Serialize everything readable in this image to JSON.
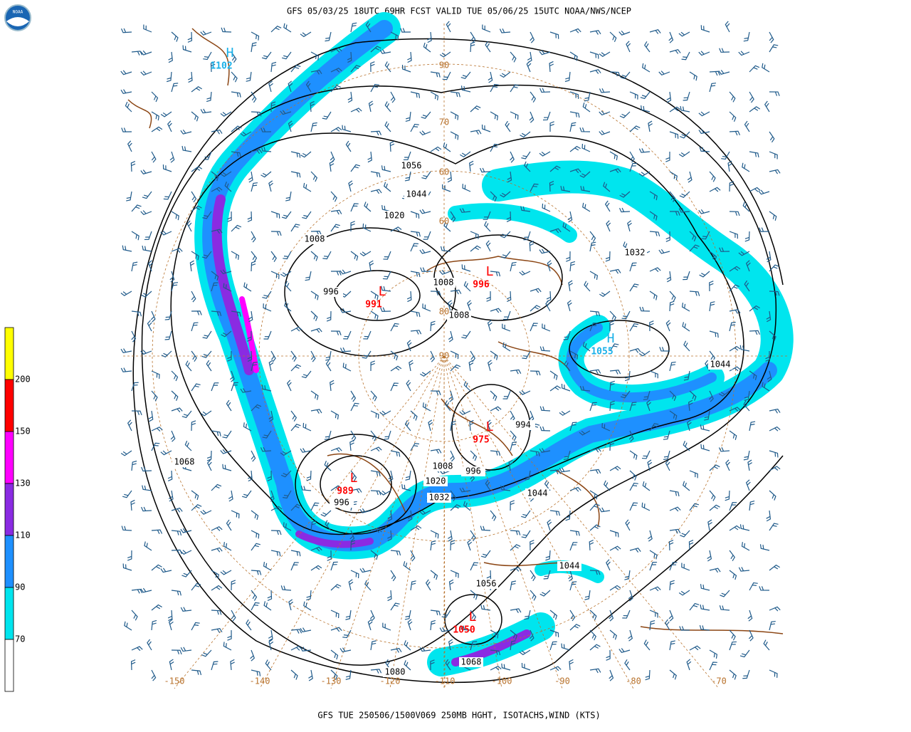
{
  "header": {
    "title": "GFS 05/03/25 18UTC 69HR FCST VALID TUE 05/06/25 15UTC NOAA/NWS/NCEP",
    "logo": "NOAA"
  },
  "footer": {
    "caption": "GFS TUE 250506/1500V069 250MB HGHT, ISOTACHS,WIND (KTS)"
  },
  "colorbar": {
    "labels": [
      "200",
      "150",
      "130",
      "110",
      "90",
      "70"
    ],
    "colors": [
      "#ffff00",
      "#ff0000",
      "#ff00ff",
      "#8a2be2",
      "#1e90ff",
      "#00e5ee",
      "#ffffff"
    ]
  },
  "centers": [
    {
      "label": "H",
      "value": "1102"
    },
    {
      "label": "L",
      "value": "991"
    },
    {
      "label": "L",
      "value": "996"
    },
    {
      "label": "H",
      "value": "1055"
    },
    {
      "label": "L",
      "value": "975"
    },
    {
      "label": "L",
      "value": "989"
    },
    {
      "label": "L",
      "value": "1050"
    }
  ],
  "contour_labels": [
    "1056",
    "1044",
    "1020",
    "1008",
    "996",
    "1008",
    "1008",
    "1032",
    "1044",
    "994",
    "1008",
    "996",
    "1020",
    "1032",
    "1068",
    "996",
    "1044",
    "1044",
    "1056",
    "1068",
    "1080"
  ],
  "latitude_labels": [
    "90",
    "70",
    "60",
    "60",
    "80",
    "90"
  ],
  "longitude_labels": [
    "-150",
    "-140",
    "-130",
    "-120",
    "-110",
    "-100",
    "-90",
    "-80",
    "-70"
  ]
}
